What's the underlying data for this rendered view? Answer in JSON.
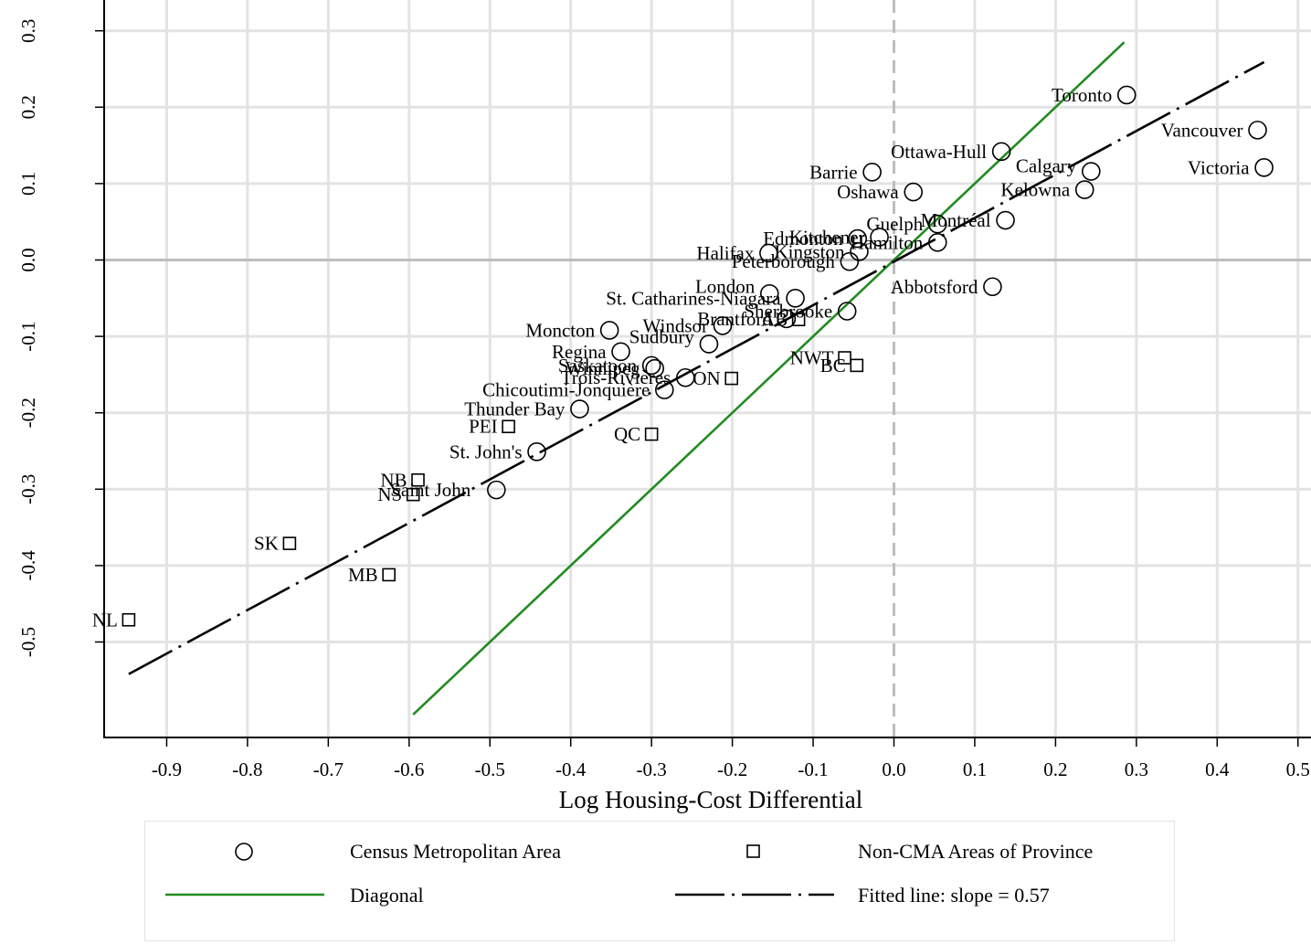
{
  "chart_data": {
    "type": "scatter",
    "xlabel": "Log Housing-Cost Differential",
    "ylabel": "",
    "xlim": [
      -0.98,
      0.52
    ],
    "ylim": [
      -0.63,
      0.33
    ],
    "xticks": [
      -0.9,
      -0.8,
      -0.7,
      -0.6,
      -0.5,
      -0.4,
      -0.3,
      -0.2,
      -0.1,
      0.0,
      0.1,
      0.2,
      0.3,
      0.4,
      0.5
    ],
    "xtick_labels": [
      "-0.9",
      "-0.8",
      "-0.7",
      "-0.6",
      "-0.5",
      "-0.4",
      "-0.3",
      "-0.2",
      "-0.1",
      "0.0",
      "0.1",
      "0.2",
      "0.3",
      "0.4",
      "0.5"
    ],
    "yticks": [
      0.3,
      0.2,
      0.1,
      0.0,
      -0.1,
      -0.2,
      -0.3,
      -0.4,
      -0.5
    ],
    "ytick_labels": [
      "0.3",
      "0.2",
      "0.1",
      "0.0",
      "-0.1",
      "-0.2",
      "-0.3",
      "-0.4",
      "-0.5"
    ],
    "grid": true,
    "reference_lines": {
      "horizontal_y": 0.0,
      "vertical_x": 0.0
    },
    "series": [
      {
        "name": "Census Metropolitan Area",
        "marker": "circle",
        "points": [
          {
            "label": "Toronto",
            "x": 0.288,
            "y": 0.216
          },
          {
            "label": "Vancouver",
            "x": 0.45,
            "y": 0.17
          },
          {
            "label": "Victoria",
            "x": 0.458,
            "y": 0.121
          },
          {
            "label": "Ottawa-Hull",
            "x": 0.133,
            "y": 0.142
          },
          {
            "label": "Calgary",
            "x": 0.244,
            "y": 0.116
          },
          {
            "label": "Barrie",
            "x": -0.027,
            "y": 0.115
          },
          {
            "label": "Kelowna",
            "x": 0.236,
            "y": 0.092
          },
          {
            "label": "Oshawa",
            "x": 0.024,
            "y": 0.089
          },
          {
            "label": "Montréal",
            "x": 0.138,
            "y": 0.052
          },
          {
            "label": "Guelph",
            "x": 0.054,
            "y": 0.047
          },
          {
            "label": "Kitchener",
            "x": -0.018,
            "y": 0.03
          },
          {
            "label": "Edmonton",
            "x": -0.045,
            "y": 0.028
          },
          {
            "label": "Hamilton",
            "x": 0.054,
            "y": 0.023
          },
          {
            "label": "Kingston",
            "x": -0.043,
            "y": 0.011
          },
          {
            "label": "Halifax",
            "x": -0.155,
            "y": 0.009
          },
          {
            "label": "Peterborough",
            "x": -0.055,
            "y": -0.002
          },
          {
            "label": "Abbotsford",
            "x": 0.122,
            "y": -0.035
          },
          {
            "label": "London",
            "x": -0.154,
            "y": -0.044
          },
          {
            "label": "St. Catharines-Niagara",
            "x": -0.122,
            "y": -0.05
          },
          {
            "label": "Sherbrooke",
            "x": -0.058,
            "y": -0.067
          },
          {
            "label": "Brantford",
            "x": -0.133,
            "y": -0.077
          },
          {
            "label": "Windsor",
            "x": -0.212,
            "y": -0.086
          },
          {
            "label": "Moncton",
            "x": -0.352,
            "y": -0.092
          },
          {
            "label": "Sudbury",
            "x": -0.229,
            "y": -0.11
          },
          {
            "label": "Regina",
            "x": -0.338,
            "y": -0.12
          },
          {
            "label": "Saskatoon",
            "x": -0.3,
            "y": -0.138
          },
          {
            "label": "Winnipeg",
            "x": -0.296,
            "y": -0.142
          },
          {
            "label": "Trois-Rivières",
            "x": -0.258,
            "y": -0.154
          },
          {
            "label": "Chicoutimi-Jonquière",
            "x": -0.284,
            "y": -0.17
          },
          {
            "label": "Thunder Bay",
            "x": -0.389,
            "y": -0.195
          },
          {
            "label": "St. John's",
            "x": -0.442,
            "y": -0.251
          },
          {
            "label": "Saint John",
            "x": -0.492,
            "y": -0.301
          }
        ]
      },
      {
        "name": "Non-CMA Areas of Province",
        "marker": "square",
        "points": [
          {
            "label": "BC",
            "x": -0.046,
            "y": -0.138
          },
          {
            "label": "NWT",
            "x": -0.061,
            "y": -0.128
          },
          {
            "label": "AB",
            "x": -0.118,
            "y": -0.078
          },
          {
            "label": "ON",
            "x": -0.201,
            "y": -0.155
          },
          {
            "label": "QC",
            "x": -0.3,
            "y": -0.228
          },
          {
            "label": "PEI",
            "x": -0.477,
            "y": -0.218
          },
          {
            "label": "NB",
            "x": -0.589,
            "y": -0.288
          },
          {
            "label": "NS",
            "x": -0.595,
            "y": -0.307
          },
          {
            "label": "SK",
            "x": -0.748,
            "y": -0.371
          },
          {
            "label": "MB",
            "x": -0.625,
            "y": -0.412
          },
          {
            "label": "NL",
            "x": -0.947,
            "y": -0.471
          }
        ]
      }
    ],
    "lines": [
      {
        "name": "Diagonal",
        "style": "solid",
        "color": "#228B22",
        "x": [
          -0.595,
          0.285
        ],
        "y": [
          -0.595,
          0.285
        ]
      },
      {
        "name": "Fitted line: slope =  0.57",
        "style": "dashdot",
        "color": "#000000",
        "x": [
          -0.947,
          0.458
        ],
        "y": [
          -0.542,
          0.259
        ]
      }
    ]
  },
  "legend": {
    "cma_label": "Census Metropolitan Area",
    "noncma_label": "Non-CMA Areas of Province",
    "diagonal_label": "Diagonal",
    "fitted_label": "Fitted line: slope =  0.57",
    "diagonal_color": "#228B22"
  }
}
